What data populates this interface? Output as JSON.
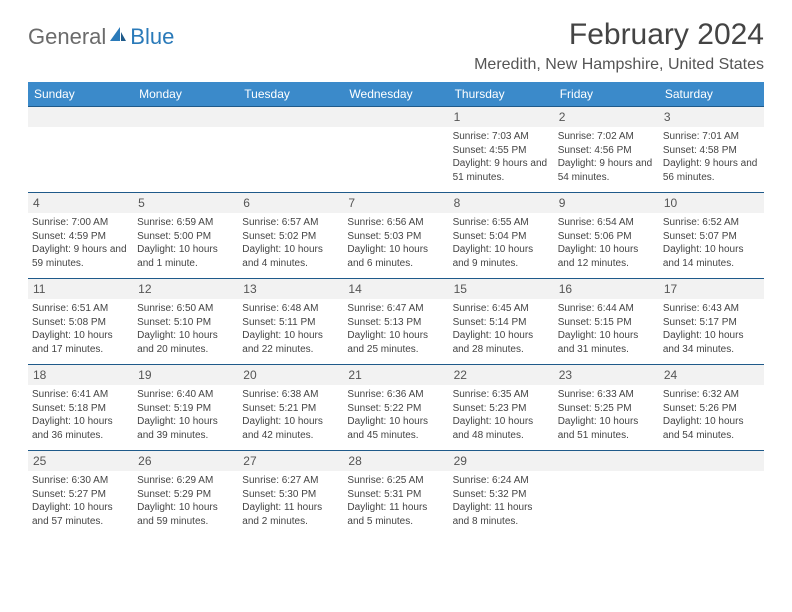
{
  "logo": {
    "text_general": "General",
    "text_blue": "Blue"
  },
  "title": "February 2024",
  "location": "Meredith, New Hampshire, United States",
  "colors": {
    "header_bg": "#3b8aca",
    "row_divider": "#1f5a8a",
    "daynum_bg": "#f2f2f2",
    "logo_gray": "#6b6b6b",
    "logo_blue": "#2a7ab9",
    "text": "#444444"
  },
  "day_headers": [
    "Sunday",
    "Monday",
    "Tuesday",
    "Wednesday",
    "Thursday",
    "Friday",
    "Saturday"
  ],
  "grid": [
    [
      null,
      null,
      null,
      null,
      {
        "n": "1",
        "sunrise": "7:03 AM",
        "sunset": "4:55 PM",
        "daylight": "9 hours and 51 minutes."
      },
      {
        "n": "2",
        "sunrise": "7:02 AM",
        "sunset": "4:56 PM",
        "daylight": "9 hours and 54 minutes."
      },
      {
        "n": "3",
        "sunrise": "7:01 AM",
        "sunset": "4:58 PM",
        "daylight": "9 hours and 56 minutes."
      }
    ],
    [
      {
        "n": "4",
        "sunrise": "7:00 AM",
        "sunset": "4:59 PM",
        "daylight": "9 hours and 59 minutes."
      },
      {
        "n": "5",
        "sunrise": "6:59 AM",
        "sunset": "5:00 PM",
        "daylight": "10 hours and 1 minute."
      },
      {
        "n": "6",
        "sunrise": "6:57 AM",
        "sunset": "5:02 PM",
        "daylight": "10 hours and 4 minutes."
      },
      {
        "n": "7",
        "sunrise": "6:56 AM",
        "sunset": "5:03 PM",
        "daylight": "10 hours and 6 minutes."
      },
      {
        "n": "8",
        "sunrise": "6:55 AM",
        "sunset": "5:04 PM",
        "daylight": "10 hours and 9 minutes."
      },
      {
        "n": "9",
        "sunrise": "6:54 AM",
        "sunset": "5:06 PM",
        "daylight": "10 hours and 12 minutes."
      },
      {
        "n": "10",
        "sunrise": "6:52 AM",
        "sunset": "5:07 PM",
        "daylight": "10 hours and 14 minutes."
      }
    ],
    [
      {
        "n": "11",
        "sunrise": "6:51 AM",
        "sunset": "5:08 PM",
        "daylight": "10 hours and 17 minutes."
      },
      {
        "n": "12",
        "sunrise": "6:50 AM",
        "sunset": "5:10 PM",
        "daylight": "10 hours and 20 minutes."
      },
      {
        "n": "13",
        "sunrise": "6:48 AM",
        "sunset": "5:11 PM",
        "daylight": "10 hours and 22 minutes."
      },
      {
        "n": "14",
        "sunrise": "6:47 AM",
        "sunset": "5:13 PM",
        "daylight": "10 hours and 25 minutes."
      },
      {
        "n": "15",
        "sunrise": "6:45 AM",
        "sunset": "5:14 PM",
        "daylight": "10 hours and 28 minutes."
      },
      {
        "n": "16",
        "sunrise": "6:44 AM",
        "sunset": "5:15 PM",
        "daylight": "10 hours and 31 minutes."
      },
      {
        "n": "17",
        "sunrise": "6:43 AM",
        "sunset": "5:17 PM",
        "daylight": "10 hours and 34 minutes."
      }
    ],
    [
      {
        "n": "18",
        "sunrise": "6:41 AM",
        "sunset": "5:18 PM",
        "daylight": "10 hours and 36 minutes."
      },
      {
        "n": "19",
        "sunrise": "6:40 AM",
        "sunset": "5:19 PM",
        "daylight": "10 hours and 39 minutes."
      },
      {
        "n": "20",
        "sunrise": "6:38 AM",
        "sunset": "5:21 PM",
        "daylight": "10 hours and 42 minutes."
      },
      {
        "n": "21",
        "sunrise": "6:36 AM",
        "sunset": "5:22 PM",
        "daylight": "10 hours and 45 minutes."
      },
      {
        "n": "22",
        "sunrise": "6:35 AM",
        "sunset": "5:23 PM",
        "daylight": "10 hours and 48 minutes."
      },
      {
        "n": "23",
        "sunrise": "6:33 AM",
        "sunset": "5:25 PM",
        "daylight": "10 hours and 51 minutes."
      },
      {
        "n": "24",
        "sunrise": "6:32 AM",
        "sunset": "5:26 PM",
        "daylight": "10 hours and 54 minutes."
      }
    ],
    [
      {
        "n": "25",
        "sunrise": "6:30 AM",
        "sunset": "5:27 PM",
        "daylight": "10 hours and 57 minutes."
      },
      {
        "n": "26",
        "sunrise": "6:29 AM",
        "sunset": "5:29 PM",
        "daylight": "10 hours and 59 minutes."
      },
      {
        "n": "27",
        "sunrise": "6:27 AM",
        "sunset": "5:30 PM",
        "daylight": "11 hours and 2 minutes."
      },
      {
        "n": "28",
        "sunrise": "6:25 AM",
        "sunset": "5:31 PM",
        "daylight": "11 hours and 5 minutes."
      },
      {
        "n": "29",
        "sunrise": "6:24 AM",
        "sunset": "5:32 PM",
        "daylight": "11 hours and 8 minutes."
      },
      null,
      null
    ]
  ],
  "labels": {
    "sunrise": "Sunrise:",
    "sunset": "Sunset:",
    "daylight": "Daylight:"
  }
}
